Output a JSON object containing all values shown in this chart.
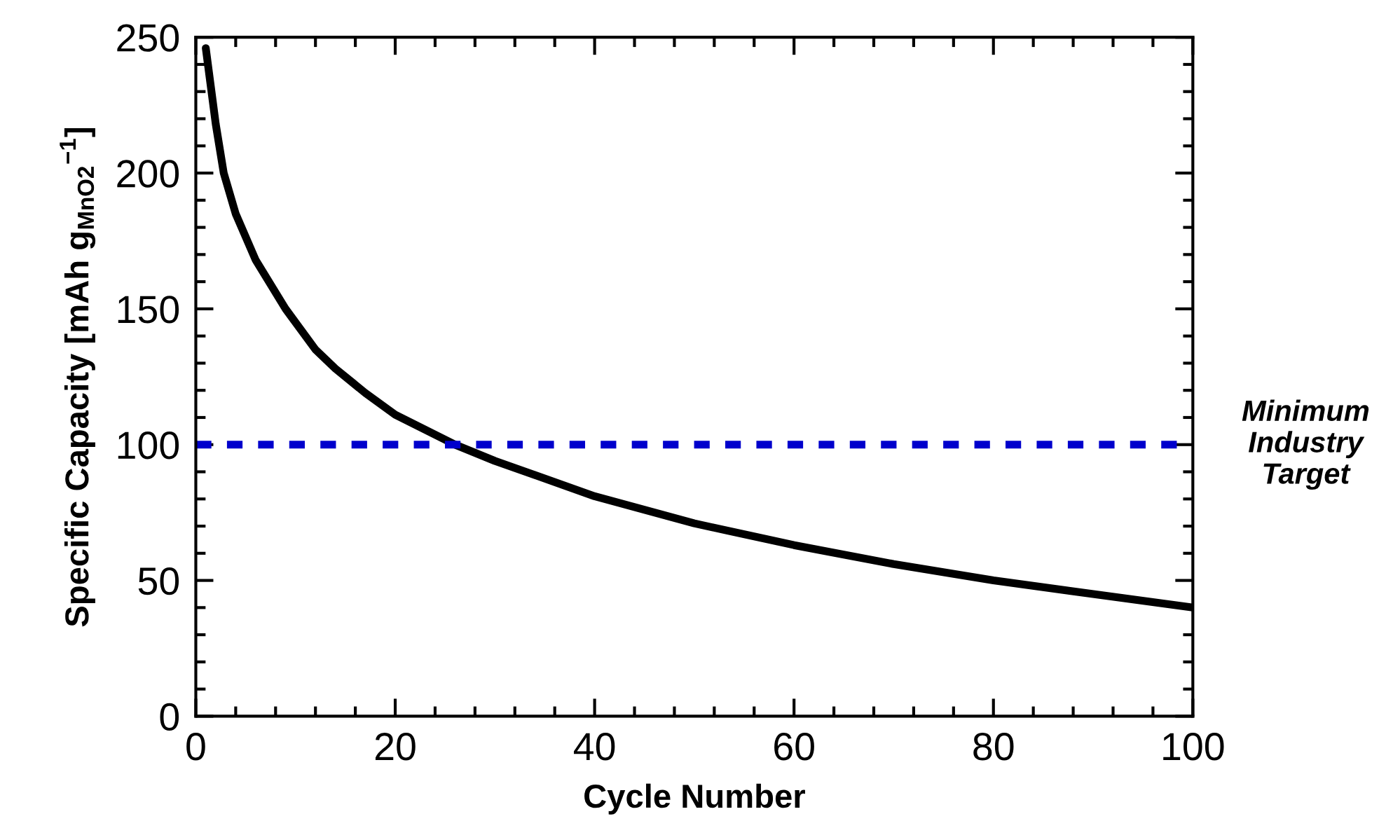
{
  "chart_data": {
    "type": "line",
    "xlabel": "Cycle Number",
    "ylabel": "Specific Capacity [mAh g$_{MnO2}$$^{−1}$]",
    "series": [
      {
        "color": "#000000",
        "x": [
          1,
          1.5,
          2,
          2.8,
          4,
          6,
          9,
          12,
          14,
          17,
          20,
          26,
          30,
          40,
          50,
          60,
          70,
          80,
          90,
          100
        ],
        "values": [
          246,
          232,
          218,
          200,
          185,
          168,
          150,
          135,
          128,
          119,
          111,
          100,
          94,
          81,
          71,
          63,
          56,
          50,
          45,
          40
        ]
      }
    ],
    "xlim": [
      0,
      100
    ],
    "xticks": [
      0,
      20,
      40,
      60,
      80,
      100
    ],
    "ylim": [
      0,
      250
    ],
    "yticks": [
      0,
      50,
      100,
      150,
      200,
      250
    ],
    "ref_lines": [
      {
        "axis": "y",
        "value": 100,
        "label": "Minimum\nIndustry\nTarget",
        "color": "#0000cc",
        "line_style": "dashed"
      }
    ],
    "grid": false,
    "legend": false,
    "marker": "none",
    "line_style": "solid"
  }
}
